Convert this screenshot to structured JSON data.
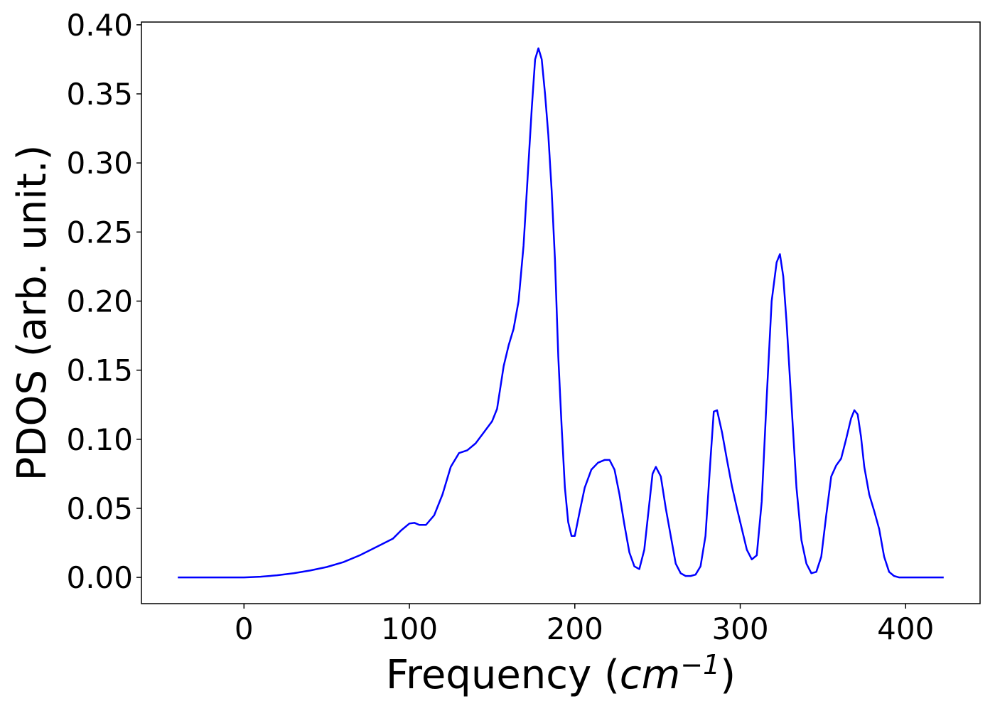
{
  "chart_data": {
    "type": "line",
    "title": "",
    "xlabel": "Frequency (cm⁻¹)",
    "xlabel_parts": {
      "prefix": "Frequency (",
      "unit_base": "cm",
      "unit_exp": "−1",
      "suffix": ")"
    },
    "ylabel": "PDOS (arb. unit.)",
    "xlim": [
      -62,
      445
    ],
    "ylim": [
      -0.019,
      0.402
    ],
    "xticks": [
      0,
      100,
      200,
      300,
      400
    ],
    "yticks": [
      0.0,
      0.05,
      0.1,
      0.15,
      0.2,
      0.25,
      0.3,
      0.35,
      0.4
    ],
    "xtick_labels": [
      "0",
      "100",
      "200",
      "300",
      "400"
    ],
    "ytick_labels": [
      "0.00",
      "0.05",
      "0.10",
      "0.15",
      "0.20",
      "0.25",
      "0.30",
      "0.35",
      "0.40"
    ],
    "grid": false,
    "legend": "none",
    "series": [
      {
        "color": "#0000ff",
        "x": [
          -40,
          0,
          10,
          20,
          30,
          40,
          50,
          60,
          70,
          80,
          90,
          95,
          100,
          103,
          106,
          110,
          115,
          120,
          125,
          130,
          135,
          140,
          145,
          150,
          153,
          157,
          160,
          163,
          166,
          169,
          172,
          174,
          176,
          178,
          180,
          182,
          184,
          186,
          188,
          190,
          192,
          194,
          196,
          198,
          200,
          203,
          206,
          210,
          214,
          218,
          221,
          224,
          227,
          230,
          233,
          236,
          239,
          242,
          245,
          247,
          249,
          252,
          255,
          258,
          261,
          264,
          267,
          270,
          273,
          276,
          279,
          282,
          284,
          286,
          289,
          292,
          295,
          298,
          301,
          304,
          307,
          310,
          313,
          316,
          319,
          322,
          324,
          326,
          328,
          331,
          334,
          337,
          340,
          343,
          346,
          349,
          352,
          355,
          358,
          361,
          364,
          367,
          369,
          371,
          373,
          375,
          378,
          381,
          384,
          387,
          390,
          393,
          396,
          400,
          410,
          423
        ],
        "y": [
          0.0,
          0.0,
          0.0005,
          0.0015,
          0.003,
          0.005,
          0.0075,
          0.011,
          0.016,
          0.022,
          0.028,
          0.034,
          0.039,
          0.0395,
          0.038,
          0.038,
          0.045,
          0.06,
          0.08,
          0.09,
          0.092,
          0.097,
          0.105,
          0.113,
          0.122,
          0.153,
          0.168,
          0.18,
          0.2,
          0.24,
          0.3,
          0.34,
          0.375,
          0.383,
          0.375,
          0.35,
          0.32,
          0.28,
          0.23,
          0.16,
          0.11,
          0.065,
          0.04,
          0.03,
          0.03,
          0.048,
          0.065,
          0.078,
          0.083,
          0.085,
          0.085,
          0.078,
          0.06,
          0.038,
          0.018,
          0.008,
          0.006,
          0.02,
          0.053,
          0.075,
          0.08,
          0.073,
          0.05,
          0.03,
          0.01,
          0.003,
          0.001,
          0.001,
          0.002,
          0.008,
          0.03,
          0.085,
          0.12,
          0.121,
          0.105,
          0.085,
          0.066,
          0.05,
          0.035,
          0.02,
          0.013,
          0.016,
          0.055,
          0.13,
          0.2,
          0.228,
          0.234,
          0.218,
          0.185,
          0.125,
          0.065,
          0.027,
          0.01,
          0.003,
          0.004,
          0.015,
          0.045,
          0.073,
          0.081,
          0.086,
          0.1,
          0.115,
          0.121,
          0.118,
          0.102,
          0.08,
          0.06,
          0.048,
          0.035,
          0.015,
          0.004,
          0.001,
          0.0,
          0.0,
          0.0,
          0.0
        ]
      }
    ]
  }
}
